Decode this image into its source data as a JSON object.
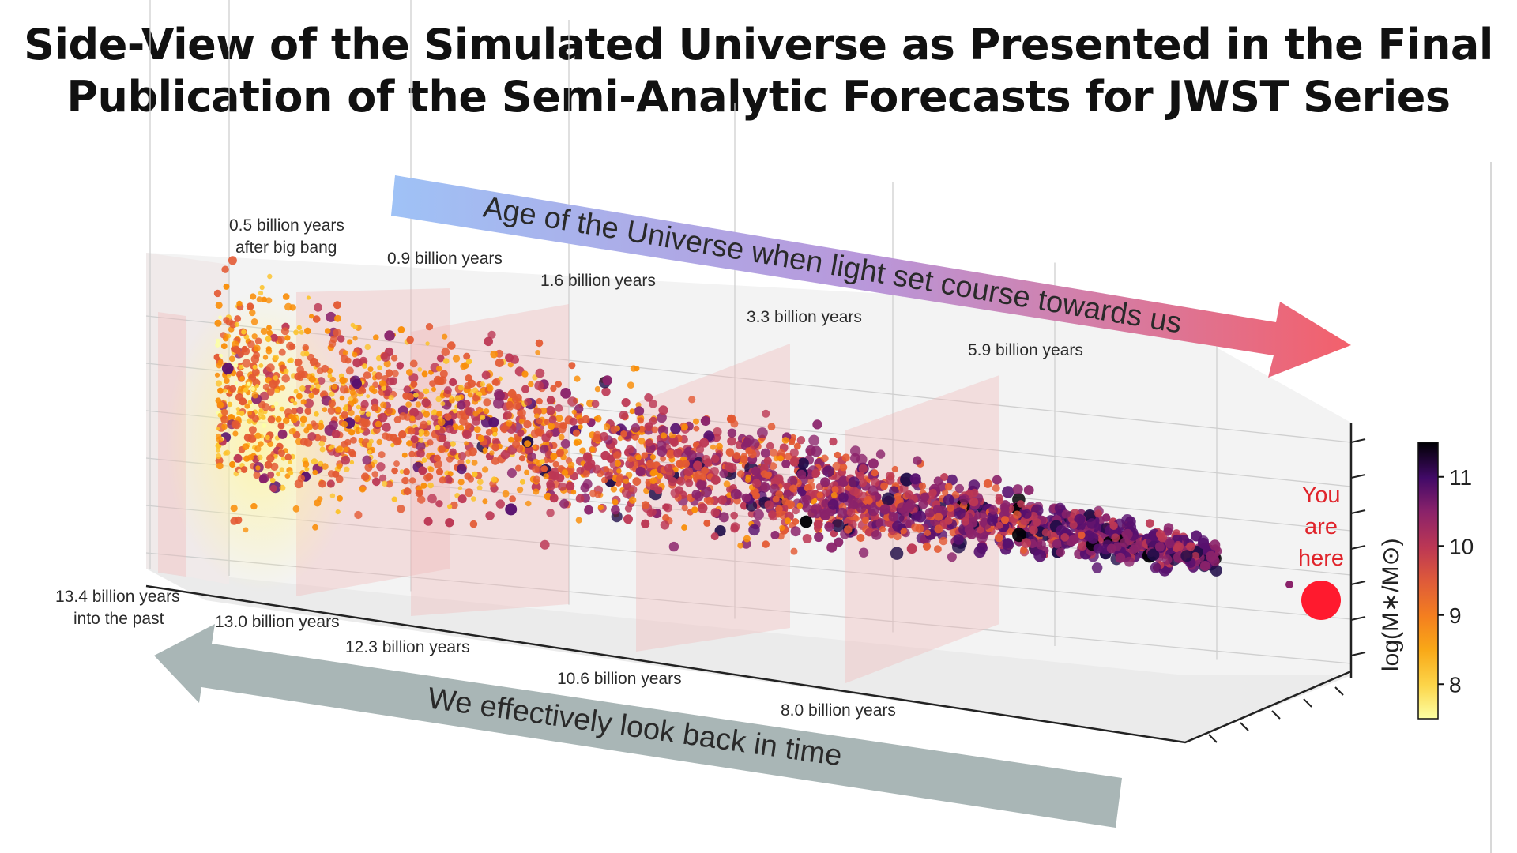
{
  "title_line1": "Side-View of the Simulated Universe as Presented in the Final",
  "title_line2": "Publication of the Semi-Analytic Forecasts for JWST Series",
  "chart_data": {
    "type": "scatter",
    "age_arrow_label": "Age of the Universe when light set course towards us",
    "lookback_arrow_label": "We effectively look back in time",
    "age_labels": [
      {
        "line1": "0.5 billion years",
        "line2": "after big bang"
      },
      {
        "line1": "0.9 billion years",
        "line2": ""
      },
      {
        "line1": "1.6 billion years",
        "line2": ""
      },
      {
        "line1": "3.3 billion years",
        "line2": ""
      },
      {
        "line1": "5.9 billion years",
        "line2": ""
      }
    ],
    "lookback_labels": [
      {
        "line1": "13.4 billion years",
        "line2": "into the past"
      },
      {
        "line1": "13.0 billion years",
        "line2": ""
      },
      {
        "line1": "12.3 billion years",
        "line2": ""
      },
      {
        "line1": "10.6 billion years",
        "line2": ""
      },
      {
        "line1": "8.0 billion years",
        "line2": ""
      }
    ],
    "you_are_here": [
      "You",
      "are",
      "here"
    ],
    "colorbar": {
      "label": "log(M∗/M⊙)",
      "ticks": [
        "8",
        "9",
        "10",
        "11"
      ],
      "range": [
        7.5,
        11.5
      ],
      "colors": [
        "#fcffa4",
        "#fcc229",
        "#f98e09",
        "#e35933",
        "#bc3754",
        "#8a226a",
        "#57106e",
        "#1f0c48",
        "#000004"
      ]
    },
    "series_count_note": ""
  }
}
